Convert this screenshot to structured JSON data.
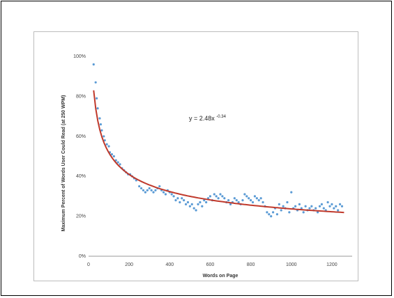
{
  "chart_data": {
    "type": "scatter",
    "xlabel": "Words on Page",
    "ylabel": "Maximum Percent of Words User Could Read (at 250 WPM)",
    "xlim": [
      0,
      1300
    ],
    "ylim": [
      0,
      100
    ],
    "xticks": [
      0,
      200,
      400,
      600,
      800,
      1000,
      1200
    ],
    "yticks": [
      0,
      20,
      40,
      60,
      80,
      100
    ],
    "ytick_labels": [
      "0%",
      "20%",
      "40%",
      "60%",
      "80%",
      "100%"
    ],
    "equation": {
      "main": "y = 2.48x",
      "exponent": "-0.34"
    },
    "grid": false,
    "legend": "none",
    "colors": {
      "points": "#5b9bd5",
      "trend": "#c0392b"
    },
    "trendline": {
      "coefficient": 2.48,
      "exponent": -0.34,
      "x_from": 25,
      "x_to": 1260
    },
    "series": [
      {
        "x": [
          25,
          35,
          40,
          45,
          55,
          60,
          65,
          75,
          80,
          90,
          100,
          105,
          115,
          125,
          135,
          145,
          155,
          165,
          175,
          185,
          195,
          205,
          215,
          225,
          235,
          250,
          260,
          270,
          280,
          290,
          300,
          310,
          320,
          330,
          340,
          350,
          360,
          370,
          380,
          390,
          400,
          410,
          420,
          430,
          440,
          450,
          460,
          470,
          480,
          490,
          500,
          510,
          520,
          530,
          540,
          550,
          560,
          570,
          580,
          590,
          600,
          610,
          620,
          630,
          640,
          650,
          660,
          670,
          680,
          690,
          700,
          710,
          720,
          730,
          740,
          750,
          760,
          770,
          780,
          790,
          800,
          810,
          820,
          830,
          840,
          850,
          860,
          870,
          880,
          890,
          900,
          910,
          920,
          930,
          940,
          950,
          960,
          970,
          980,
          990,
          1000,
          1010,
          1020,
          1030,
          1040,
          1050,
          1060,
          1070,
          1080,
          1090,
          1100,
          1110,
          1120,
          1130,
          1140,
          1150,
          1160,
          1170,
          1180,
          1190,
          1200,
          1210,
          1220,
          1230,
          1240,
          1250
        ],
        "y": [
          96,
          87,
          79,
          74,
          69,
          66,
          63,
          60,
          58,
          56,
          55,
          52,
          51,
          50,
          48,
          47,
          46,
          44,
          43,
          42,
          41,
          41,
          40,
          39,
          38,
          35,
          34,
          33,
          32,
          33,
          34,
          33,
          32,
          33,
          34,
          35,
          33,
          32,
          31,
          33,
          32,
          31,
          30,
          28,
          29,
          27,
          29,
          28,
          26,
          27,
          25,
          26,
          24,
          23,
          26,
          27,
          25,
          28,
          27,
          29,
          30,
          28,
          31,
          30,
          29,
          31,
          30,
          29,
          27,
          28,
          26,
          27,
          29,
          28,
          27,
          26,
          28,
          31,
          30,
          29,
          28,
          27,
          30,
          29,
          28,
          29,
          27,
          25,
          22,
          21,
          20,
          22,
          24,
          21,
          26,
          23,
          25,
          24,
          27,
          22,
          32,
          24,
          25,
          23,
          26,
          24,
          22,
          25,
          23,
          24,
          25,
          23,
          24,
          22,
          25,
          26,
          24,
          23,
          27,
          25,
          26,
          24,
          25,
          23,
          26,
          25
        ]
      }
    ]
  }
}
